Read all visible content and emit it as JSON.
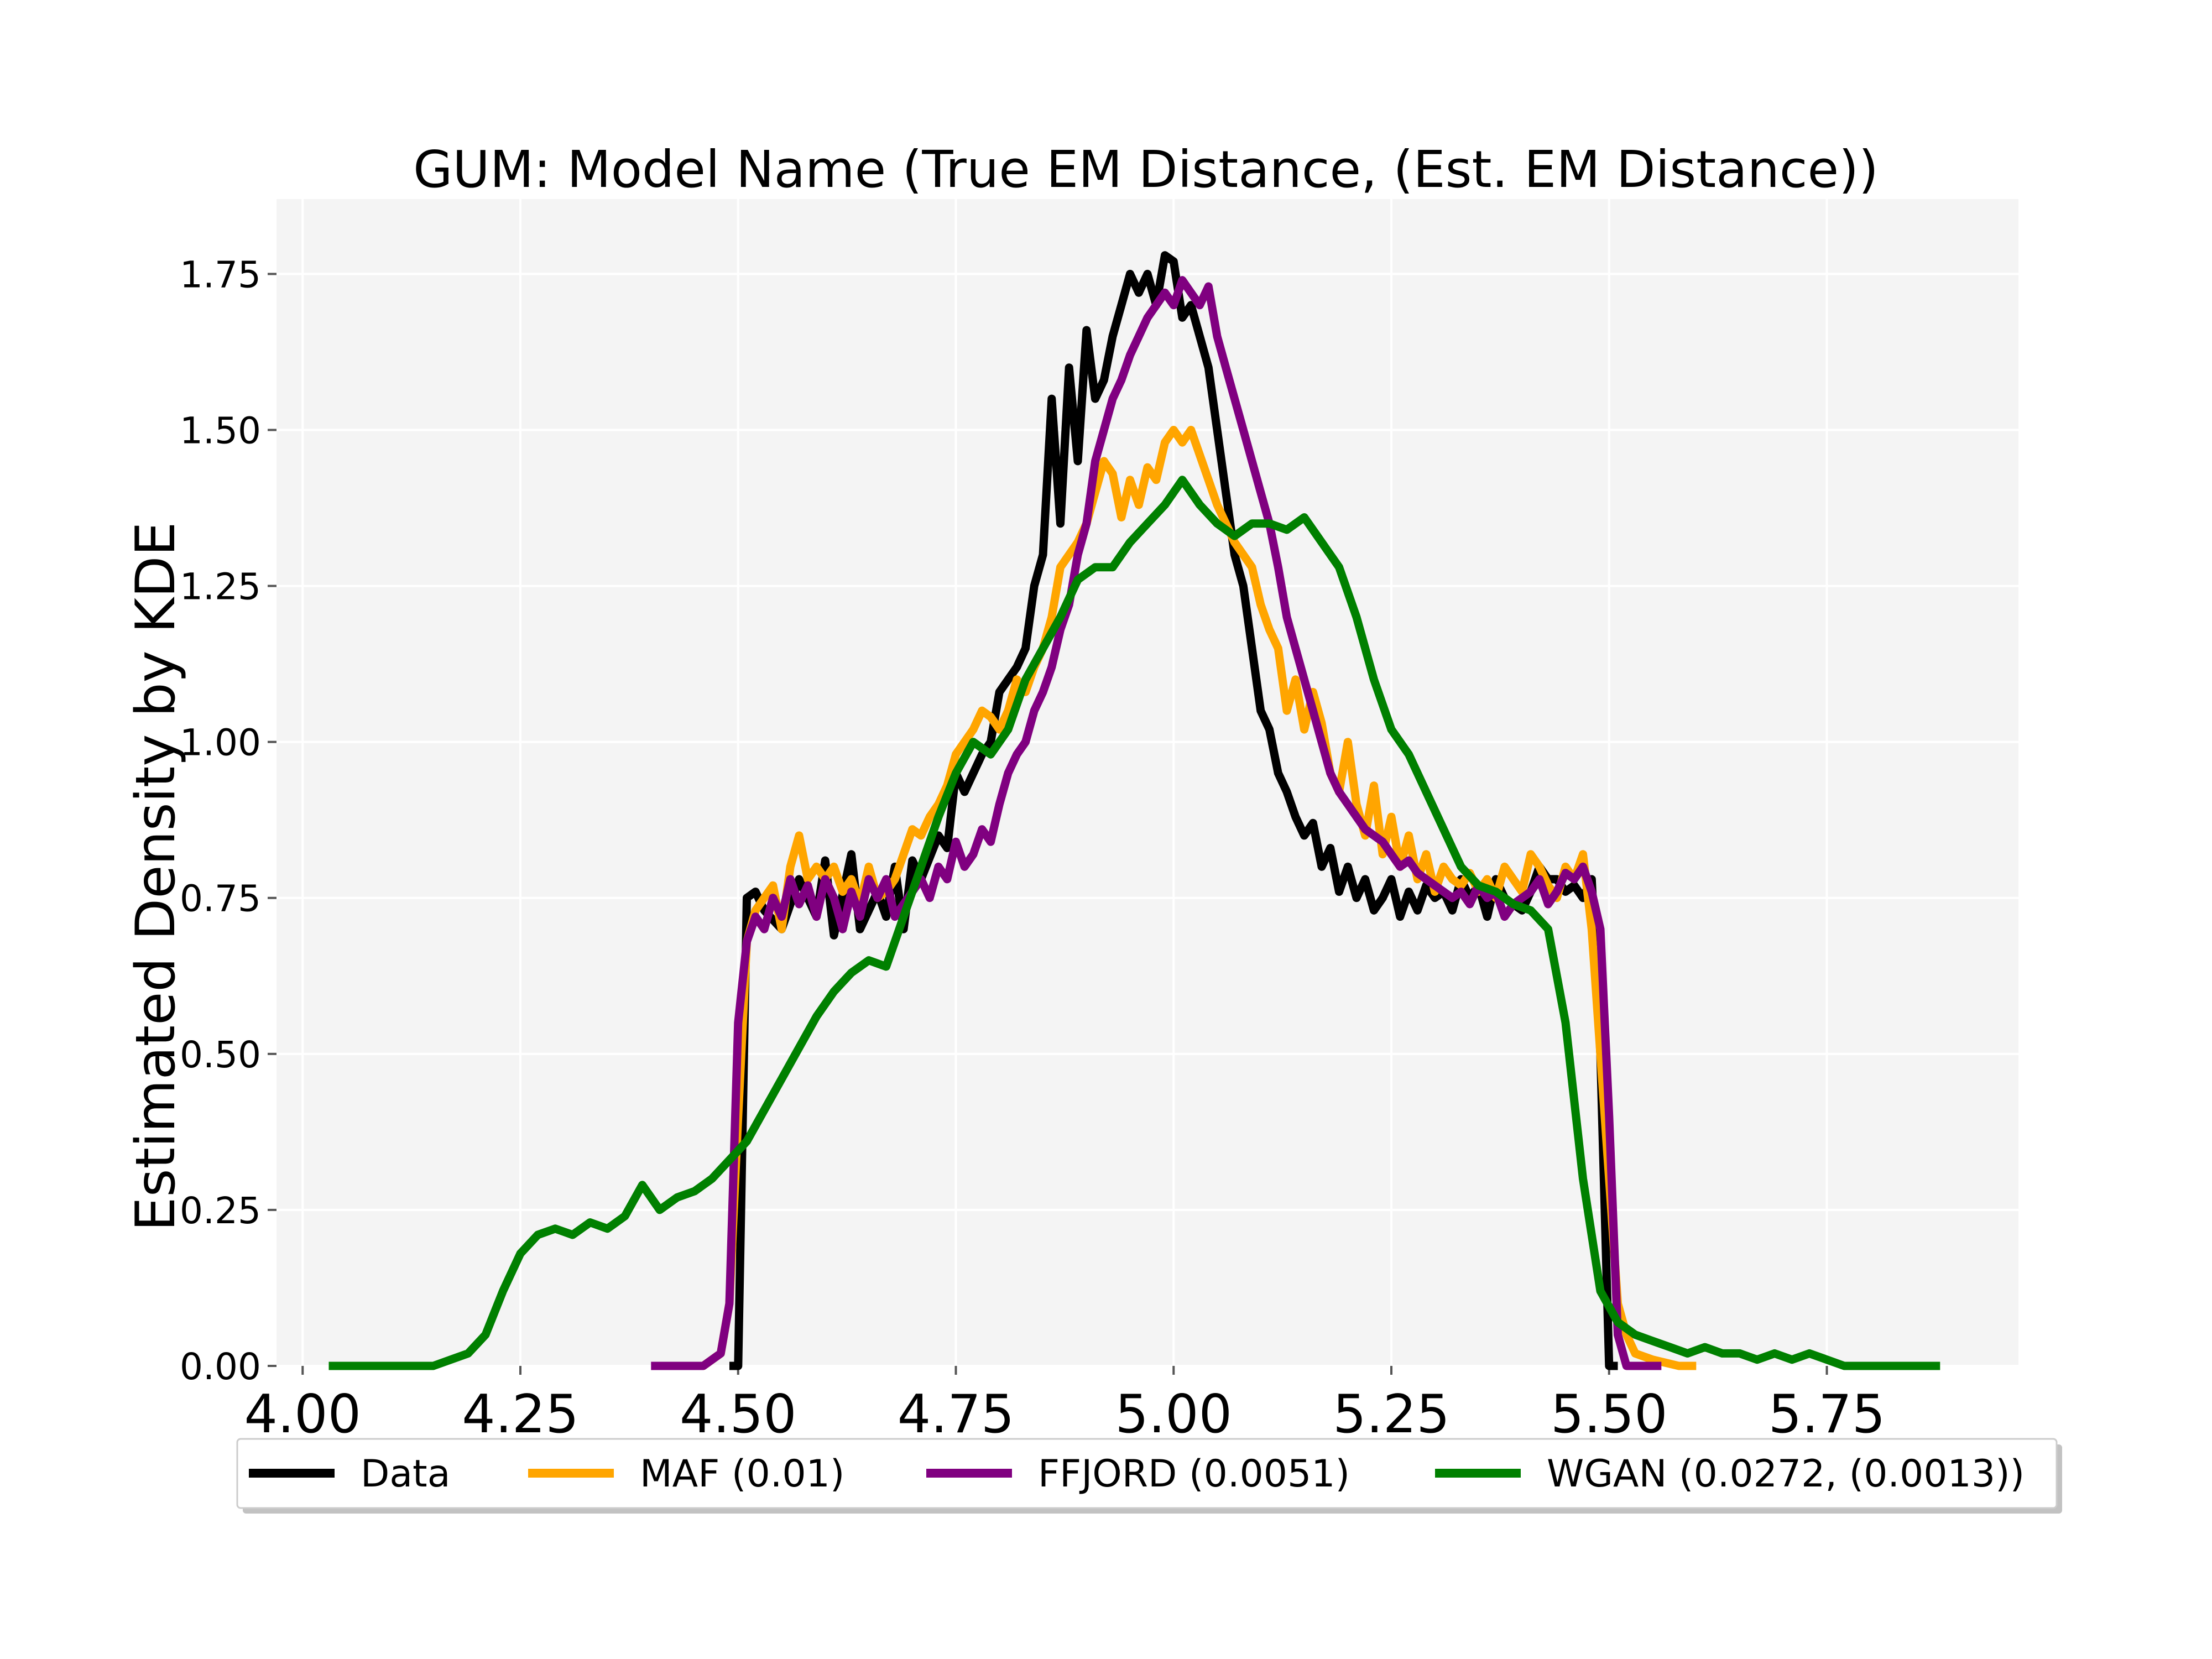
{
  "chart_data": {
    "type": "line",
    "title": "GUM: Model Name (True EM Distance, (Est. EM Distance))",
    "xlabel": "",
    "ylabel": "Estimated Density by KDE",
    "xlim": [
      3.97,
      5.97
    ],
    "ylim": [
      0.0,
      1.87
    ],
    "grid": true,
    "legend_position": "bottom-center",
    "x_ticks": [
      4.0,
      4.25,
      4.5,
      4.75,
      5.0,
      5.25,
      5.5,
      5.75
    ],
    "x_tick_labels": [
      "4.00",
      "4.25",
      "4.50",
      "4.75",
      "5.00",
      "5.25",
      "5.50",
      "5.75"
    ],
    "y_ticks": [
      0.0,
      0.25,
      0.5,
      0.75,
      1.0,
      1.25,
      1.5,
      1.75
    ],
    "y_tick_labels": [
      "0.00",
      "0.25",
      "0.50",
      "0.75",
      "1.00",
      "1.25",
      "1.50",
      "1.75"
    ],
    "series": [
      {
        "name": "Data",
        "color": "#000000",
        "x": [
          4.49,
          4.5,
          4.51,
          4.52,
          4.53,
          4.55,
          4.57,
          4.59,
          4.6,
          4.61,
          4.63,
          4.64,
          4.66,
          4.67,
          4.68,
          4.69,
          4.7,
          4.71,
          4.73,
          4.74,
          4.75,
          4.76,
          4.78,
          4.79,
          4.8,
          4.82,
          4.83,
          4.84,
          4.85,
          4.86,
          4.87,
          4.88,
          4.89,
          4.9,
          4.91,
          4.92,
          4.93,
          4.94,
          4.95,
          4.96,
          4.97,
          4.98,
          4.99,
          5.0,
          5.01,
          5.02,
          5.03,
          5.04,
          5.05,
          5.06,
          5.07,
          5.08,
          5.09,
          5.1,
          5.11,
          5.12,
          5.13,
          5.14,
          5.15,
          5.16,
          5.17,
          5.18,
          5.19,
          5.2,
          5.21,
          5.22,
          5.23,
          5.24,
          5.25,
          5.26,
          5.27,
          5.28,
          5.29,
          5.3,
          5.31,
          5.32,
          5.33,
          5.34,
          5.35,
          5.36,
          5.37,
          5.38,
          5.39,
          5.4,
          5.41,
          5.42,
          5.43,
          5.44,
          5.45,
          5.46,
          5.47,
          5.48,
          5.49,
          5.5,
          5.51
        ],
        "values": [
          0.0,
          0.0,
          0.75,
          0.76,
          0.73,
          0.7,
          0.78,
          0.72,
          0.81,
          0.69,
          0.82,
          0.7,
          0.76,
          0.72,
          0.8,
          0.7,
          0.81,
          0.78,
          0.85,
          0.83,
          0.95,
          0.92,
          0.98,
          1.0,
          1.08,
          1.12,
          1.15,
          1.25,
          1.3,
          1.55,
          1.35,
          1.6,
          1.45,
          1.66,
          1.55,
          1.58,
          1.65,
          1.7,
          1.75,
          1.72,
          1.75,
          1.7,
          1.78,
          1.77,
          1.68,
          1.7,
          1.65,
          1.6,
          1.5,
          1.4,
          1.3,
          1.25,
          1.15,
          1.05,
          1.02,
          0.95,
          0.92,
          0.88,
          0.85,
          0.87,
          0.8,
          0.83,
          0.76,
          0.8,
          0.75,
          0.78,
          0.73,
          0.75,
          0.78,
          0.72,
          0.76,
          0.73,
          0.77,
          0.75,
          0.76,
          0.73,
          0.78,
          0.75,
          0.77,
          0.72,
          0.78,
          0.75,
          0.74,
          0.73,
          0.76,
          0.8,
          0.78,
          0.78,
          0.76,
          0.77,
          0.75,
          0.78,
          0.5,
          0.0,
          0.0
        ]
      },
      {
        "name": "MAF (0.01)",
        "color": "#ffa500",
        "x": [
          4.44,
          4.46,
          4.48,
          4.49,
          4.5,
          4.51,
          4.52,
          4.53,
          4.54,
          4.55,
          4.56,
          4.57,
          4.58,
          4.59,
          4.6,
          4.61,
          4.62,
          4.63,
          4.64,
          4.65,
          4.66,
          4.67,
          4.68,
          4.69,
          4.7,
          4.71,
          4.72,
          4.73,
          4.74,
          4.75,
          4.76,
          4.77,
          4.78,
          4.79,
          4.8,
          4.81,
          4.82,
          4.83,
          4.84,
          4.85,
          4.86,
          4.87,
          4.88,
          4.89,
          4.9,
          4.91,
          4.92,
          4.93,
          4.94,
          4.95,
          4.96,
          4.97,
          4.98,
          4.99,
          5.0,
          5.01,
          5.02,
          5.03,
          5.04,
          5.05,
          5.06,
          5.07,
          5.08,
          5.09,
          5.1,
          5.11,
          5.12,
          5.13,
          5.14,
          5.15,
          5.16,
          5.17,
          5.18,
          5.19,
          5.2,
          5.21,
          5.22,
          5.23,
          5.24,
          5.25,
          5.26,
          5.27,
          5.28,
          5.29,
          5.3,
          5.31,
          5.32,
          5.33,
          5.34,
          5.35,
          5.36,
          5.37,
          5.38,
          5.39,
          5.4,
          5.41,
          5.42,
          5.43,
          5.44,
          5.45,
          5.46,
          5.47,
          5.48,
          5.49,
          5.5,
          5.51,
          5.52,
          5.53,
          5.55,
          5.58,
          5.6
        ],
        "values": [
          0.0,
          0.0,
          0.02,
          0.1,
          0.4,
          0.68,
          0.73,
          0.75,
          0.77,
          0.7,
          0.8,
          0.85,
          0.78,
          0.8,
          0.78,
          0.8,
          0.76,
          0.78,
          0.74,
          0.8,
          0.75,
          0.76,
          0.78,
          0.82,
          0.86,
          0.85,
          0.88,
          0.9,
          0.93,
          0.98,
          1.0,
          1.02,
          1.05,
          1.04,
          1.02,
          1.05,
          1.1,
          1.08,
          1.12,
          1.15,
          1.2,
          1.28,
          1.3,
          1.32,
          1.35,
          1.4,
          1.45,
          1.43,
          1.36,
          1.42,
          1.38,
          1.44,
          1.42,
          1.48,
          1.5,
          1.48,
          1.5,
          1.46,
          1.42,
          1.38,
          1.35,
          1.32,
          1.3,
          1.28,
          1.22,
          1.18,
          1.15,
          1.05,
          1.1,
          1.02,
          1.08,
          1.03,
          0.95,
          0.92,
          1.0,
          0.9,
          0.85,
          0.93,
          0.82,
          0.88,
          0.8,
          0.85,
          0.78,
          0.82,
          0.76,
          0.8,
          0.78,
          0.77,
          0.79,
          0.76,
          0.78,
          0.75,
          0.8,
          0.78,
          0.76,
          0.82,
          0.8,
          0.77,
          0.75,
          0.8,
          0.78,
          0.82,
          0.7,
          0.5,
          0.3,
          0.1,
          0.05,
          0.02,
          0.01,
          0.0,
          0.0
        ]
      },
      {
        "name": "FFJORD (0.0051)",
        "color": "#800080",
        "x": [
          4.4,
          4.43,
          4.46,
          4.48,
          4.49,
          4.5,
          4.51,
          4.52,
          4.53,
          4.54,
          4.55,
          4.56,
          4.57,
          4.58,
          4.59,
          4.6,
          4.61,
          4.62,
          4.63,
          4.64,
          4.65,
          4.66,
          4.67,
          4.68,
          4.69,
          4.7,
          4.71,
          4.72,
          4.73,
          4.74,
          4.75,
          4.76,
          4.77,
          4.78,
          4.79,
          4.8,
          4.81,
          4.82,
          4.83,
          4.84,
          4.85,
          4.86,
          4.87,
          4.88,
          4.89,
          4.9,
          4.91,
          4.92,
          4.93,
          4.94,
          4.95,
          4.96,
          4.97,
          4.98,
          4.99,
          5.0,
          5.01,
          5.02,
          5.03,
          5.04,
          5.05,
          5.06,
          5.07,
          5.08,
          5.09,
          5.1,
          5.11,
          5.12,
          5.13,
          5.14,
          5.15,
          5.16,
          5.17,
          5.18,
          5.19,
          5.2,
          5.21,
          5.22,
          5.23,
          5.24,
          5.25,
          5.26,
          5.27,
          5.28,
          5.29,
          5.3,
          5.31,
          5.32,
          5.33,
          5.34,
          5.35,
          5.36,
          5.37,
          5.38,
          5.39,
          5.4,
          5.41,
          5.42,
          5.43,
          5.44,
          5.45,
          5.46,
          5.47,
          5.48,
          5.49,
          5.5,
          5.51,
          5.52,
          5.53,
          5.55,
          5.56
        ],
        "values": [
          0.0,
          0.0,
          0.0,
          0.02,
          0.1,
          0.55,
          0.68,
          0.72,
          0.7,
          0.75,
          0.72,
          0.78,
          0.74,
          0.77,
          0.72,
          0.78,
          0.75,
          0.7,
          0.76,
          0.72,
          0.78,
          0.75,
          0.78,
          0.72,
          0.74,
          0.76,
          0.78,
          0.75,
          0.8,
          0.78,
          0.84,
          0.8,
          0.82,
          0.86,
          0.84,
          0.9,
          0.95,
          0.98,
          1.0,
          1.05,
          1.08,
          1.12,
          1.18,
          1.22,
          1.3,
          1.35,
          1.45,
          1.5,
          1.55,
          1.58,
          1.62,
          1.65,
          1.68,
          1.7,
          1.72,
          1.7,
          1.74,
          1.72,
          1.7,
          1.73,
          1.65,
          1.6,
          1.55,
          1.5,
          1.45,
          1.4,
          1.35,
          1.28,
          1.2,
          1.15,
          1.1,
          1.05,
          1.0,
          0.95,
          0.92,
          0.9,
          0.88,
          0.86,
          0.85,
          0.84,
          0.82,
          0.8,
          0.81,
          0.79,
          0.78,
          0.77,
          0.76,
          0.75,
          0.76,
          0.74,
          0.77,
          0.75,
          0.76,
          0.72,
          0.74,
          0.75,
          0.76,
          0.78,
          0.74,
          0.76,
          0.79,
          0.78,
          0.8,
          0.76,
          0.7,
          0.4,
          0.05,
          0.0,
          0.0,
          0.0,
          0.0
        ]
      },
      {
        "name": "WGAN (0.0272, (0.0013))",
        "color": "#008000",
        "x": [
          4.03,
          4.07,
          4.12,
          4.15,
          4.17,
          4.19,
          4.21,
          4.23,
          4.25,
          4.27,
          4.29,
          4.31,
          4.33,
          4.35,
          4.37,
          4.39,
          4.41,
          4.43,
          4.45,
          4.47,
          4.49,
          4.51,
          4.53,
          4.55,
          4.57,
          4.59,
          4.61,
          4.63,
          4.65,
          4.67,
          4.69,
          4.71,
          4.73,
          4.75,
          4.77,
          4.79,
          4.81,
          4.83,
          4.85,
          4.87,
          4.89,
          4.91,
          4.93,
          4.95,
          4.97,
          4.99,
          5.01,
          5.03,
          5.05,
          5.07,
          5.09,
          5.11,
          5.13,
          5.15,
          5.17,
          5.19,
          5.21,
          5.23,
          5.25,
          5.27,
          5.29,
          5.31,
          5.33,
          5.35,
          5.37,
          5.39,
          5.41,
          5.43,
          5.45,
          5.47,
          5.49,
          5.51,
          5.53,
          5.55,
          5.57,
          5.59,
          5.61,
          5.63,
          5.65,
          5.67,
          5.69,
          5.71,
          5.73,
          5.75,
          5.77,
          5.8,
          5.85,
          5.88
        ],
        "values": [
          0.0,
          0.0,
          0.0,
          0.0,
          0.01,
          0.02,
          0.05,
          0.12,
          0.18,
          0.21,
          0.22,
          0.21,
          0.23,
          0.22,
          0.24,
          0.29,
          0.25,
          0.27,
          0.28,
          0.3,
          0.33,
          0.36,
          0.41,
          0.46,
          0.51,
          0.56,
          0.6,
          0.63,
          0.65,
          0.64,
          0.72,
          0.8,
          0.88,
          0.95,
          1.0,
          0.98,
          1.02,
          1.1,
          1.15,
          1.2,
          1.26,
          1.28,
          1.28,
          1.32,
          1.35,
          1.38,
          1.42,
          1.38,
          1.35,
          1.33,
          1.35,
          1.35,
          1.34,
          1.36,
          1.32,
          1.28,
          1.2,
          1.1,
          1.02,
          0.98,
          0.92,
          0.86,
          0.8,
          0.77,
          0.76,
          0.74,
          0.73,
          0.7,
          0.55,
          0.3,
          0.12,
          0.07,
          0.05,
          0.04,
          0.03,
          0.02,
          0.03,
          0.02,
          0.02,
          0.01,
          0.02,
          0.01,
          0.02,
          0.01,
          0.0,
          0.0,
          0.0,
          0.0
        ]
      }
    ]
  }
}
